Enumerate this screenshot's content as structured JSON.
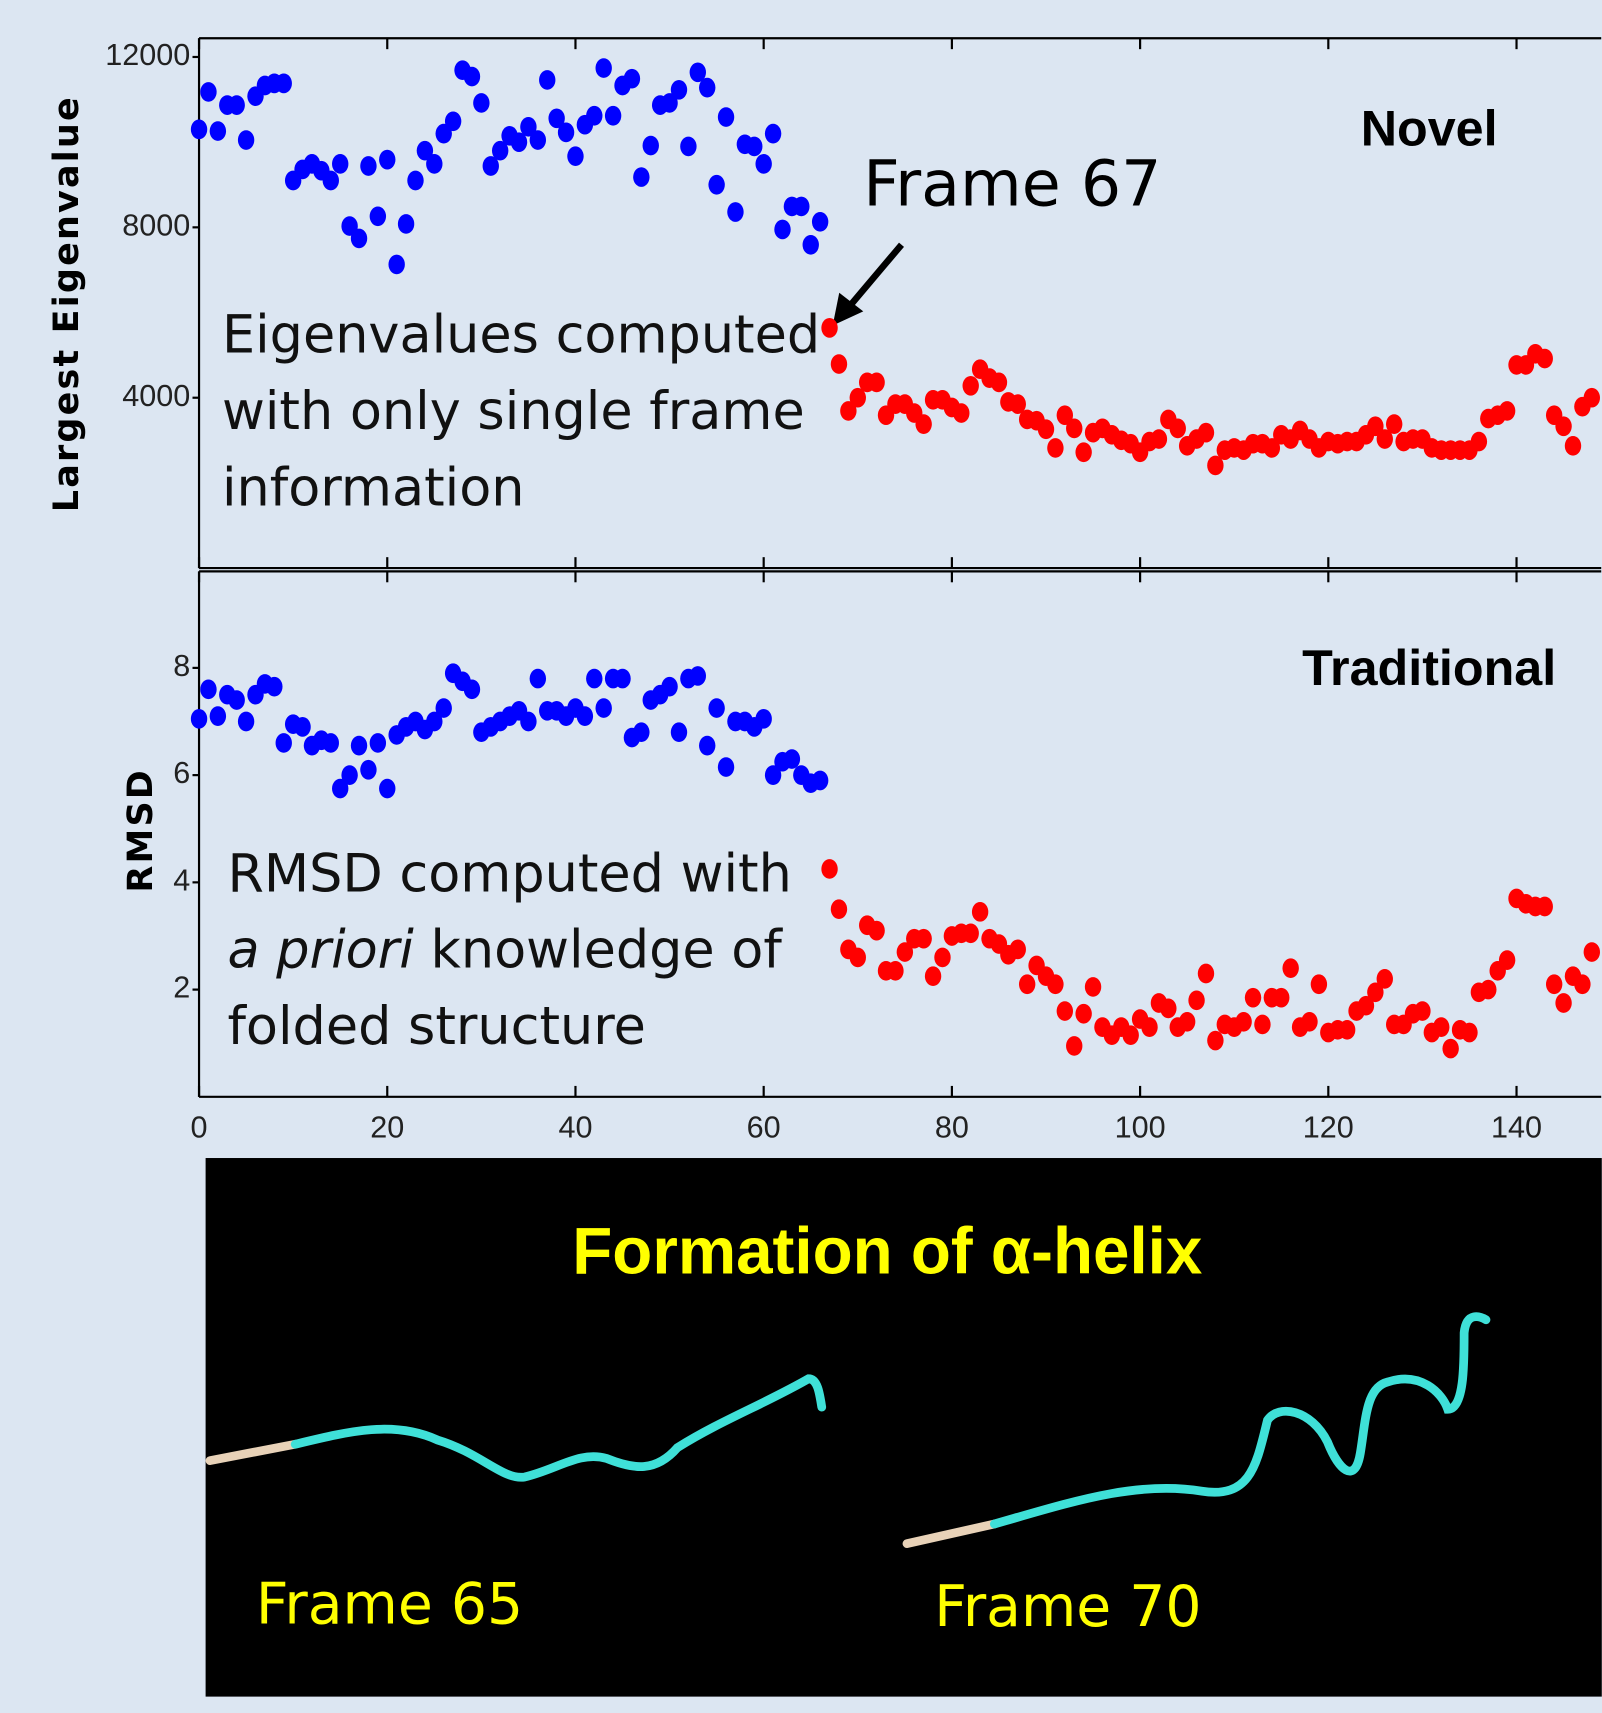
{
  "chart_data": [
    {
      "type": "scatter",
      "ylabel": "Largest Eigenvalue",
      "label": "Novel",
      "annotation": "Frame 67",
      "note": [
        [
          {
            "text": "Eigenvalues computed"
          }
        ],
        [
          {
            "text": "with only single frame"
          }
        ],
        [
          {
            "text": "information"
          }
        ]
      ],
      "xlim": [
        0,
        149
      ],
      "ylim": [
        0,
        12440
      ],
      "yticks": [
        4000,
        8000,
        12000
      ],
      "series": [
        {
          "color": "#0000ff",
          "x": [
            0,
            1,
            2,
            3,
            4,
            5,
            6,
            7,
            8,
            9,
            10,
            11,
            12,
            13,
            14,
            15,
            16,
            17,
            18,
            19,
            20,
            21,
            22,
            23,
            24,
            25,
            26,
            27,
            28,
            29,
            30,
            31,
            32,
            33,
            34,
            35,
            36,
            37,
            38,
            39,
            40,
            41,
            42,
            43,
            44,
            45,
            46,
            47,
            48,
            49,
            50,
            51,
            52,
            53,
            54,
            55,
            56,
            57,
            58,
            59,
            60,
            61,
            62,
            63,
            64,
            65,
            66
          ],
          "values": [
            10300,
            11180,
            10260,
            10870,
            10870,
            10050,
            11080,
            11330,
            11380,
            11380,
            9100,
            9360,
            9490,
            9330,
            9100,
            9490,
            8030,
            7740,
            9440,
            8260,
            9590,
            7130,
            8080,
            9100,
            9800,
            9490,
            10200,
            10490,
            11690,
            11540,
            10920,
            9440,
            9800,
            10150,
            10000,
            10360,
            10050,
            11460,
            10560,
            10230,
            9670,
            10410,
            10620,
            11740,
            10620,
            11330,
            11490,
            9180,
            9920,
            10870,
            10920,
            11230,
            9900,
            11640,
            11280,
            9000,
            10590,
            8360,
            9950,
            9900,
            9490,
            10200,
            7950,
            8490,
            8490,
            7590,
            8130
          ]
        },
        {
          "color": "#ff0000",
          "x": [
            67,
            68,
            69,
            70,
            71,
            72,
            73,
            74,
            75,
            76,
            77,
            78,
            79,
            80,
            81,
            82,
            83,
            84,
            85,
            86,
            87,
            88,
            89,
            90,
            91,
            92,
            93,
            94,
            95,
            96,
            97,
            98,
            99,
            100,
            101,
            102,
            103,
            104,
            105,
            106,
            107,
            108,
            109,
            110,
            111,
            112,
            113,
            114,
            115,
            116,
            117,
            118,
            119,
            120,
            121,
            122,
            123,
            124,
            125,
            126,
            127,
            128,
            129,
            130,
            131,
            132,
            133,
            134,
            135,
            136,
            137,
            138,
            139,
            140,
            141,
            142,
            143,
            144,
            145,
            146,
            147,
            148
          ],
          "values": [
            5640,
            4790,
            3690,
            4000,
            4360,
            4360,
            3590,
            3850,
            3850,
            3640,
            3380,
            3950,
            3950,
            3770,
            3640,
            4280,
            4670,
            4460,
            4360,
            3900,
            3850,
            3490,
            3460,
            3260,
            2820,
            3590,
            3280,
            2720,
            3180,
            3280,
            3130,
            3000,
            2920,
            2720,
            2970,
            3030,
            3490,
            3280,
            2870,
            3030,
            3180,
            2410,
            2770,
            2820,
            2770,
            2920,
            2920,
            2820,
            3130,
            3030,
            3230,
            3030,
            2820,
            2970,
            2920,
            2970,
            2970,
            3130,
            3330,
            3030,
            3380,
            2970,
            3030,
            3030,
            2820,
            2770,
            2770,
            2770,
            2770,
            2970,
            3510,
            3590,
            3690,
            4770,
            4770,
            5030,
            4920,
            3590,
            3330,
            2870,
            3790,
            4000
          ]
        }
      ]
    },
    {
      "type": "scatter",
      "ylabel": "RMSD",
      "label": "Traditional",
      "note": [
        [
          {
            "text": "RMSD computed with"
          }
        ],
        [
          {
            "text": "a priori",
            "italic": true
          },
          {
            "text": " knowledge of"
          }
        ],
        [
          {
            "text": "folded structure"
          }
        ]
      ],
      "xlim": [
        0,
        149
      ],
      "ylim": [
        0,
        9.8
      ],
      "xticks": [
        0,
        20,
        40,
        60,
        80,
        100,
        120,
        140
      ],
      "yticks": [
        2,
        4,
        6,
        8
      ],
      "series": [
        {
          "color": "#0000ff",
          "x": [
            0,
            1,
            2,
            3,
            4,
            5,
            6,
            7,
            8,
            9,
            10,
            11,
            12,
            13,
            14,
            15,
            16,
            17,
            18,
            19,
            20,
            21,
            22,
            23,
            24,
            25,
            26,
            27,
            28,
            29,
            30,
            31,
            32,
            33,
            34,
            35,
            36,
            37,
            38,
            39,
            40,
            41,
            42,
            43,
            44,
            45,
            46,
            47,
            48,
            49,
            50,
            51,
            52,
            53,
            54,
            55,
            56,
            57,
            58,
            59,
            60,
            61,
            62,
            63,
            64,
            65,
            66
          ],
          "values": [
            7.05,
            7.6,
            7.1,
            7.5,
            7.4,
            7.0,
            7.5,
            7.7,
            7.65,
            6.6,
            6.95,
            6.9,
            6.55,
            6.65,
            6.6,
            5.75,
            6.0,
            6.55,
            6.1,
            6.6,
            5.75,
            6.75,
            6.9,
            7.0,
            6.85,
            7.0,
            7.25,
            7.9,
            7.75,
            7.6,
            6.8,
            6.9,
            7.0,
            7.1,
            7.2,
            7.0,
            7.8,
            7.2,
            7.2,
            7.1,
            7.25,
            7.1,
            7.8,
            7.25,
            7.8,
            7.8,
            6.7,
            6.8,
            7.4,
            7.5,
            7.65,
            6.8,
            7.8,
            7.85,
            6.55,
            7.25,
            6.15,
            7.0,
            7.0,
            6.9,
            7.05,
            6.0,
            6.25,
            6.3,
            6.0,
            5.85,
            5.9
          ]
        },
        {
          "color": "#ff0000",
          "x": [
            67,
            68,
            69,
            70,
            71,
            72,
            73,
            74,
            75,
            76,
            77,
            78,
            79,
            80,
            81,
            82,
            83,
            84,
            85,
            86,
            87,
            88,
            89,
            90,
            91,
            92,
            93,
            94,
            95,
            96,
            97,
            98,
            99,
            100,
            101,
            102,
            103,
            104,
            105,
            106,
            107,
            108,
            109,
            110,
            111,
            112,
            113,
            114,
            115,
            116,
            117,
            118,
            119,
            120,
            121,
            122,
            123,
            124,
            125,
            126,
            127,
            128,
            129,
            130,
            131,
            132,
            133,
            134,
            135,
            136,
            137,
            138,
            139,
            140,
            141,
            142,
            143,
            144,
            145,
            146,
            147,
            148
          ],
          "values": [
            4.25,
            3.5,
            2.75,
            2.6,
            3.2,
            3.1,
            2.35,
            2.35,
            2.7,
            2.95,
            2.95,
            2.25,
            2.6,
            3.0,
            3.05,
            3.05,
            3.45,
            2.95,
            2.85,
            2.65,
            2.75,
            2.1,
            2.45,
            2.25,
            2.1,
            1.6,
            0.95,
            1.55,
            2.05,
            1.3,
            1.15,
            1.3,
            1.15,
            1.45,
            1.3,
            1.75,
            1.65,
            1.3,
            1.4,
            1.8,
            2.3,
            1.05,
            1.35,
            1.3,
            1.4,
            1.85,
            1.35,
            1.85,
            1.85,
            2.4,
            1.3,
            1.4,
            2.1,
            1.2,
            1.25,
            1.25,
            1.6,
            1.7,
            1.95,
            2.2,
            1.35,
            1.35,
            1.55,
            1.6,
            1.2,
            1.3,
            0.9,
            1.25,
            1.2,
            1.95,
            2.0,
            2.35,
            2.55,
            3.7,
            3.6,
            3.55,
            3.55,
            2.1,
            1.75,
            2.25,
            2.1,
            2.7
          ]
        }
      ]
    }
  ],
  "panel": {
    "title": "Formation of α-helix",
    "captions": [
      "Frame 65",
      "Frame 70"
    ]
  }
}
